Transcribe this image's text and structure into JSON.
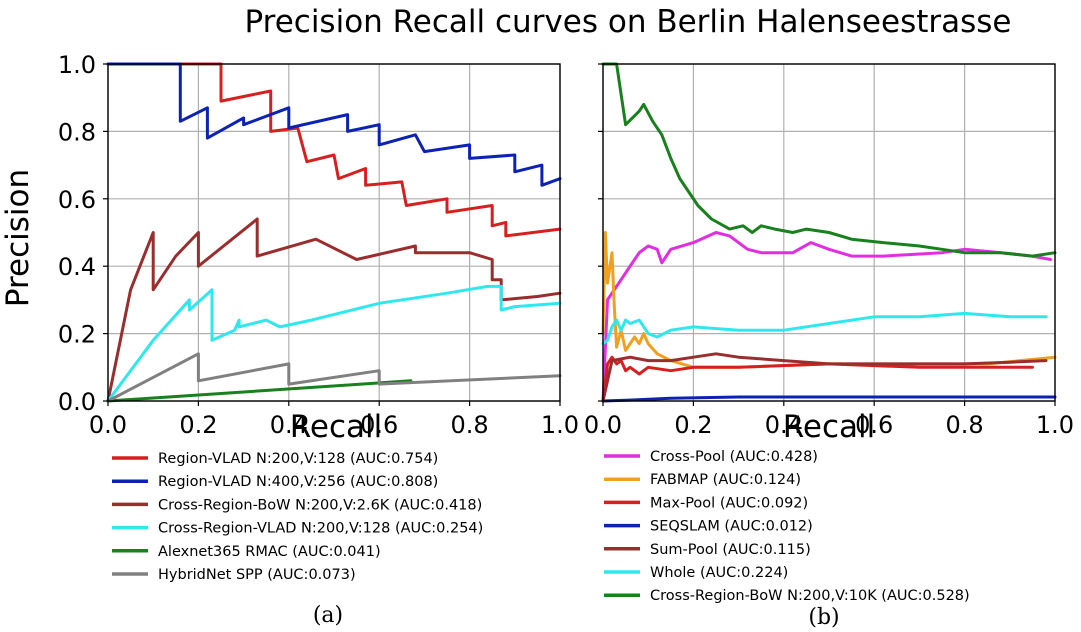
{
  "title": "Precision Recall curves on Berlin Halenseestrasse",
  "chart_data": [
    {
      "type": "line",
      "panel": "a",
      "caption": "(a)",
      "xlabel": "Recall",
      "ylabel": "Precision",
      "xlim": [
        0,
        1
      ],
      "ylim": [
        0,
        1
      ],
      "grid": true,
      "legend": "below",
      "xticks": [
        "0.0",
        "0.2",
        "0.4",
        "0.6",
        "0.8",
        "1.0"
      ],
      "yticks": [
        "0.0",
        "0.2",
        "0.4",
        "0.6",
        "0.8",
        "1.0"
      ],
      "series": [
        {
          "name": "Region-VLAD N:200,V:128 (AUC:0.754)",
          "color": "#d62020",
          "points": [
            [
              0,
              1.0
            ],
            [
              0.25,
              1.0
            ],
            [
              0.25,
              0.89
            ],
            [
              0.36,
              0.92
            ],
            [
              0.36,
              0.8
            ],
            [
              0.42,
              0.81
            ],
            [
              0.44,
              0.71
            ],
            [
              0.5,
              0.73
            ],
            [
              0.51,
              0.66
            ],
            [
              0.57,
              0.69
            ],
            [
              0.57,
              0.64
            ],
            [
              0.65,
              0.65
            ],
            [
              0.66,
              0.58
            ],
            [
              0.75,
              0.6
            ],
            [
              0.75,
              0.56
            ],
            [
              0.85,
              0.58
            ],
            [
              0.85,
              0.52
            ],
            [
              0.88,
              0.53
            ],
            [
              0.88,
              0.49
            ],
            [
              1.0,
              0.51
            ]
          ]
        },
        {
          "name": "Region-VLAD N:400,V:256 (AUC:0.808)",
          "color": "#0c22b4",
          "points": [
            [
              0,
              1.0
            ],
            [
              0.16,
              1.0
            ],
            [
              0.16,
              0.83
            ],
            [
              0.22,
              0.87
            ],
            [
              0.22,
              0.78
            ],
            [
              0.3,
              0.84
            ],
            [
              0.3,
              0.82
            ],
            [
              0.4,
              0.87
            ],
            [
              0.4,
              0.81
            ],
            [
              0.53,
              0.85
            ],
            [
              0.53,
              0.8
            ],
            [
              0.6,
              0.82
            ],
            [
              0.6,
              0.76
            ],
            [
              0.68,
              0.79
            ],
            [
              0.7,
              0.74
            ],
            [
              0.8,
              0.76
            ],
            [
              0.8,
              0.72
            ],
            [
              0.9,
              0.73
            ],
            [
              0.9,
              0.68
            ],
            [
              0.96,
              0.7
            ],
            [
              0.96,
              0.64
            ],
            [
              1.0,
              0.66
            ]
          ]
        },
        {
          "name": "Cross-Region-BoW N:200,V:2.6K (AUC:0.418)",
          "color": "#9a2d2d",
          "points": [
            [
              0,
              0
            ],
            [
              0.05,
              0.33
            ],
            [
              0.1,
              0.5
            ],
            [
              0.1,
              0.33
            ],
            [
              0.15,
              0.43
            ],
            [
              0.2,
              0.5
            ],
            [
              0.2,
              0.4
            ],
            [
              0.33,
              0.54
            ],
            [
              0.33,
              0.43
            ],
            [
              0.46,
              0.48
            ],
            [
              0.55,
              0.42
            ],
            [
              0.68,
              0.46
            ],
            [
              0.68,
              0.44
            ],
            [
              0.8,
              0.44
            ],
            [
              0.85,
              0.42
            ],
            [
              0.85,
              0.36
            ],
            [
              0.87,
              0.36
            ],
            [
              0.87,
              0.3
            ],
            [
              0.95,
              0.31
            ],
            [
              1.0,
              0.32
            ]
          ]
        },
        {
          "name": "Cross-Region-VLAD N:200,V:128 (AUC:0.254)",
          "color": "#2ee8ee",
          "points": [
            [
              0,
              0
            ],
            [
              0.1,
              0.18
            ],
            [
              0.18,
              0.3
            ],
            [
              0.18,
              0.27
            ],
            [
              0.23,
              0.33
            ],
            [
              0.23,
              0.18
            ],
            [
              0.28,
              0.21
            ],
            [
              0.29,
              0.24
            ],
            [
              0.29,
              0.22
            ],
            [
              0.35,
              0.24
            ],
            [
              0.38,
              0.22
            ],
            [
              0.45,
              0.24
            ],
            [
              0.6,
              0.29
            ],
            [
              0.75,
              0.32
            ],
            [
              0.84,
              0.34
            ],
            [
              0.87,
              0.34
            ],
            [
              0.87,
              0.27
            ],
            [
              0.9,
              0.28
            ],
            [
              1.0,
              0.29
            ]
          ]
        },
        {
          "name": "Alexnet365 RMAC  (AUC:0.041)",
          "color": "#18801c",
          "points": [
            [
              0,
              0
            ],
            [
              0.67,
              0.06
            ]
          ]
        },
        {
          "name": "HybridNet SPP (AUC:0.073)",
          "color": "#808080",
          "points": [
            [
              0,
              0
            ],
            [
              0.2,
              0.14
            ],
            [
              0.2,
              0.06
            ],
            [
              0.4,
              0.11
            ],
            [
              0.4,
              0.05
            ],
            [
              0.6,
              0.09
            ],
            [
              0.6,
              0.05
            ],
            [
              1.0,
              0.075
            ]
          ]
        }
      ]
    },
    {
      "type": "line",
      "panel": "b",
      "caption": "(b)",
      "xlabel": "Recall",
      "ylabel": "",
      "xlim": [
        0,
        1
      ],
      "ylim": [
        0,
        1
      ],
      "grid": true,
      "legend": "below",
      "xticks": [
        "0.0",
        "0.2",
        "0.4",
        "0.6",
        "0.8",
        "1.0"
      ],
      "series": [
        {
          "name": "Cross-Pool (AUC:0.428)",
          "color": "#e02ee0",
          "points": [
            [
              0,
              0
            ],
            [
              0.01,
              0.3
            ],
            [
              0.04,
              0.36
            ],
            [
              0.06,
              0.4
            ],
            [
              0.08,
              0.44
            ],
            [
              0.1,
              0.46
            ],
            [
              0.12,
              0.45
            ],
            [
              0.13,
              0.41
            ],
            [
              0.15,
              0.45
            ],
            [
              0.2,
              0.47
            ],
            [
              0.25,
              0.5
            ],
            [
              0.28,
              0.49
            ],
            [
              0.32,
              0.45
            ],
            [
              0.35,
              0.44
            ],
            [
              0.42,
              0.44
            ],
            [
              0.46,
              0.47
            ],
            [
              0.5,
              0.45
            ],
            [
              0.55,
              0.43
            ],
            [
              0.62,
              0.43
            ],
            [
              0.75,
              0.44
            ],
            [
              0.8,
              0.45
            ],
            [
              0.88,
              0.44
            ],
            [
              0.95,
              0.43
            ],
            [
              0.99,
              0.42
            ]
          ]
        },
        {
          "name": "FABMAP (AUC:0.124)",
          "color": "#f0a020",
          "points": [
            [
              0,
              0.2
            ],
            [
              0.005,
              0.5
            ],
            [
              0.01,
              0.35
            ],
            [
              0.02,
              0.44
            ],
            [
              0.025,
              0.28
            ],
            [
              0.03,
              0.16
            ],
            [
              0.04,
              0.21
            ],
            [
              0.05,
              0.15
            ],
            [
              0.06,
              0.17
            ],
            [
              0.07,
              0.19
            ],
            [
              0.08,
              0.17
            ],
            [
              0.09,
              0.2
            ],
            [
              0.1,
              0.17
            ],
            [
              0.12,
              0.14
            ],
            [
              0.15,
              0.12
            ],
            [
              0.2,
              0.1
            ],
            [
              0.3,
              0.1
            ],
            [
              0.5,
              0.11
            ],
            [
              0.7,
              0.11
            ],
            [
              0.85,
              0.11
            ],
            [
              1.0,
              0.13
            ]
          ]
        },
        {
          "name": "Max-Pool (AUC:0.092)",
          "color": "#d62020",
          "points": [
            [
              0,
              0
            ],
            [
              0.01,
              0.11
            ],
            [
              0.02,
              0.13
            ],
            [
              0.03,
              0.11
            ],
            [
              0.04,
              0.12
            ],
            [
              0.05,
              0.09
            ],
            [
              0.06,
              0.1
            ],
            [
              0.08,
              0.08
            ],
            [
              0.1,
              0.1
            ],
            [
              0.15,
              0.09
            ],
            [
              0.2,
              0.1
            ],
            [
              0.3,
              0.1
            ],
            [
              0.5,
              0.11
            ],
            [
              0.7,
              0.1
            ],
            [
              0.95,
              0.1
            ]
          ]
        },
        {
          "name": "SEQSLAM (AUC:0.012)",
          "color": "#0c22b4",
          "points": [
            [
              0,
              0
            ],
            [
              0.05,
              0.002
            ],
            [
              0.15,
              0.008
            ],
            [
              0.3,
              0.012
            ],
            [
              0.6,
              0.012
            ],
            [
              1.0,
              0.012
            ]
          ]
        },
        {
          "name": "Sum-Pool (AUC:0.115)",
          "color": "#9a2d2d",
          "points": [
            [
              0,
              0
            ],
            [
              0.02,
              0.12
            ],
            [
              0.06,
              0.13
            ],
            [
              0.1,
              0.12
            ],
            [
              0.15,
              0.12
            ],
            [
              0.2,
              0.13
            ],
            [
              0.25,
              0.14
            ],
            [
              0.3,
              0.13
            ],
            [
              0.4,
              0.12
            ],
            [
              0.5,
              0.11
            ],
            [
              0.6,
              0.11
            ],
            [
              0.7,
              0.11
            ],
            [
              0.8,
              0.11
            ],
            [
              0.9,
              0.115
            ],
            [
              0.98,
              0.12
            ]
          ]
        },
        {
          "name": "Whole (AUC:0.224)",
          "color": "#2ee8ee",
          "points": [
            [
              0,
              0.17
            ],
            [
              0.01,
              0.18
            ],
            [
              0.02,
              0.22
            ],
            [
              0.03,
              0.24
            ],
            [
              0.04,
              0.21
            ],
            [
              0.05,
              0.24
            ],
            [
              0.06,
              0.23
            ],
            [
              0.08,
              0.24
            ],
            [
              0.1,
              0.2
            ],
            [
              0.12,
              0.19
            ],
            [
              0.15,
              0.21
            ],
            [
              0.2,
              0.22
            ],
            [
              0.3,
              0.21
            ],
            [
              0.4,
              0.21
            ],
            [
              0.5,
              0.23
            ],
            [
              0.6,
              0.25
            ],
            [
              0.7,
              0.25
            ],
            [
              0.8,
              0.26
            ],
            [
              0.9,
              0.25
            ],
            [
              0.98,
              0.25
            ]
          ]
        },
        {
          "name": "Cross-Region-BoW N:200,V:10K (AUC:0.528)",
          "color": "#18801c",
          "points": [
            [
              0,
              1.0
            ],
            [
              0.03,
              1.0
            ],
            [
              0.05,
              0.82
            ],
            [
              0.08,
              0.86
            ],
            [
              0.09,
              0.88
            ],
            [
              0.11,
              0.83
            ],
            [
              0.13,
              0.79
            ],
            [
              0.15,
              0.72
            ],
            [
              0.17,
              0.66
            ],
            [
              0.19,
              0.62
            ],
            [
              0.21,
              0.58
            ],
            [
              0.24,
              0.54
            ],
            [
              0.28,
              0.51
            ],
            [
              0.31,
              0.52
            ],
            [
              0.33,
              0.5
            ],
            [
              0.35,
              0.52
            ],
            [
              0.38,
              0.51
            ],
            [
              0.42,
              0.5
            ],
            [
              0.45,
              0.51
            ],
            [
              0.5,
              0.5
            ],
            [
              0.55,
              0.48
            ],
            [
              0.62,
              0.47
            ],
            [
              0.7,
              0.46
            ],
            [
              0.75,
              0.45
            ],
            [
              0.8,
              0.44
            ],
            [
              0.88,
              0.44
            ],
            [
              0.95,
              0.43
            ],
            [
              1.0,
              0.44
            ]
          ]
        }
      ]
    }
  ]
}
